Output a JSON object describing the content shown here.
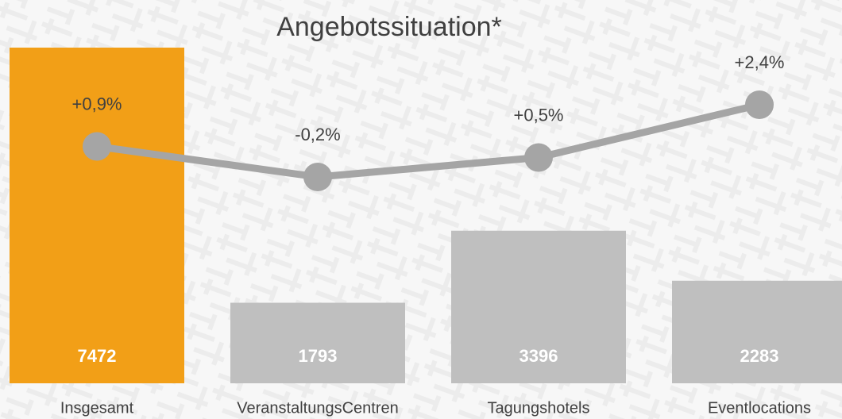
{
  "chart_data": {
    "type": "bar",
    "title": "Angebotssituation*",
    "categories": [
      "Insgesamt",
      "VeranstaltungsCentren",
      "Tagungshotels",
      "Eventlocations"
    ],
    "series": [
      {
        "type": "bar",
        "colors": [
          "#f29f17",
          "#bfbfbf",
          "#bfbfbf",
          "#bfbfbf"
        ],
        "values": [
          7472,
          1793,
          3396,
          2283
        ]
      },
      {
        "type": "line",
        "color": "#a5a5a5",
        "values": [
          0.9,
          -0.2,
          0.5,
          2.4
        ],
        "value_labels": [
          "+0,9%",
          "-0,2%",
          "+0,5%",
          "+2,4%"
        ]
      }
    ]
  }
}
